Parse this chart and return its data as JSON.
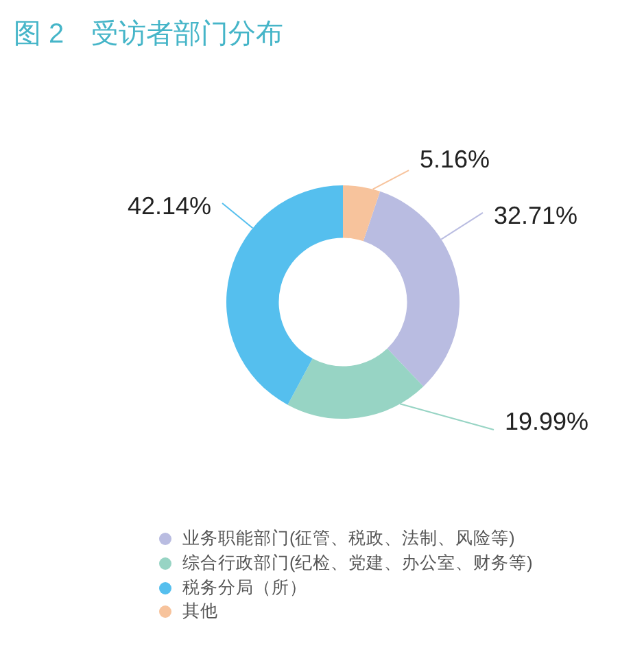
{
  "chart_data": {
    "type": "donut",
    "title": "图 2　受访者部门分布",
    "categories": [
      "业务职能部门(征管、税政、法制、风险等)",
      "综合行政部门(纪检、党建、办公室、财务等)",
      "税务分局（所）",
      "其他"
    ],
    "values": [
      32.71,
      19.99,
      42.14,
      5.16
    ],
    "colors": [
      "#b9bce1",
      "#97d4c4",
      "#55bfee",
      "#f7c39c"
    ],
    "value_labels": [
      "32.71%",
      "19.99%",
      "42.14%",
      "5.16%"
    ],
    "legend": "bottom"
  }
}
